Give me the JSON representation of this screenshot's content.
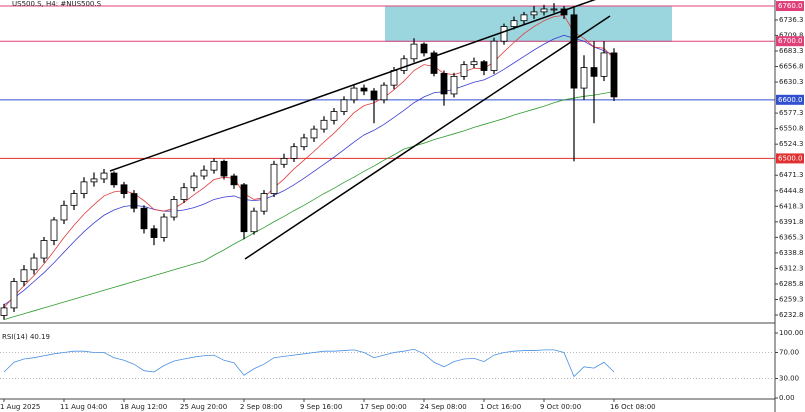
{
  "chart_data": [
    {
      "type": "candlestick",
      "title": "US500.S, H4:  #NUS500.S",
      "categories": [
        "1 Aug 2025",
        null,
        null,
        null,
        null,
        null,
        "11 Aug 04:00",
        null,
        null,
        null,
        null,
        null,
        "18 Aug 12:00",
        null,
        null,
        null,
        null,
        null,
        "25 Aug 20:00",
        null,
        null,
        null,
        null,
        null,
        "2 Sep 08:00",
        null,
        null,
        null,
        null,
        null,
        "9 Sep 16:00",
        null,
        null,
        null,
        null,
        null,
        "17 Sep 00:00",
        null,
        null,
        null,
        null,
        null,
        "24 Sep 08:00",
        null,
        null,
        null,
        null,
        null,
        "1 Oct 16:00",
        null,
        null,
        null,
        null,
        null,
        "9 Oct 00:00",
        null,
        null,
        null,
        null,
        null,
        null,
        "16 Oct 08:00"
      ],
      "open": [
        6232,
        6245,
        6290,
        6310,
        6330,
        6360,
        6395,
        6420,
        6440,
        6460,
        6465,
        6475,
        6455,
        6440,
        6415,
        6380,
        6365,
        6400,
        6430,
        6450,
        6470,
        6480,
        6495,
        6470,
        6455,
        6375,
        6410,
        6440,
        6490,
        6500,
        6520,
        6535,
        6550,
        6565,
        6580,
        6600,
        6620,
        6615,
        6600,
        6625,
        6650,
        6670,
        6695,
        6680,
        6645,
        6610,
        6640,
        6660,
        6665,
        6650,
        6700,
        6725,
        6735,
        6745,
        6750,
        6755,
        6755,
        6745,
        6620,
        6655,
        6640,
        6680
      ],
      "high": [
        6252,
        6296,
        6318,
        6338,
        6366,
        6400,
        6428,
        6446,
        6468,
        6476,
        6482,
        6478,
        6460,
        6446,
        6420,
        6386,
        6406,
        6436,
        6458,
        6476,
        6488,
        6500,
        6498,
        6474,
        6458,
        6416,
        6446,
        6496,
        6508,
        6526,
        6542,
        6556,
        6572,
        6586,
        6606,
        6626,
        6626,
        6620,
        6630,
        6656,
        6676,
        6705,
        6698,
        6684,
        6650,
        6646,
        6666,
        6672,
        6668,
        6706,
        6730,
        6742,
        6750,
        6760,
        6762,
        6765,
        6760,
        6760,
        6676,
        6700,
        6700,
        6688
      ],
      "low": [
        6225,
        6238,
        6282,
        6302,
        6322,
        6352,
        6388,
        6412,
        6432,
        6452,
        6458,
        6450,
        6432,
        6408,
        6372,
        6352,
        6358,
        6394,
        6424,
        6444,
        6464,
        6474,
        6464,
        6448,
        6362,
        6370,
        6404,
        6434,
        6484,
        6494,
        6514,
        6528,
        6544,
        6558,
        6574,
        6594,
        6608,
        6560,
        6594,
        6618,
        6644,
        6664,
        6674,
        6640,
        6590,
        6604,
        6634,
        6654,
        6642,
        6644,
        6694,
        6720,
        6728,
        6738,
        6744,
        6748,
        6738,
        6495,
        6600,
        6560,
        6632,
        6598
      ],
      "close": [
        6245,
        6290,
        6310,
        6330,
        6360,
        6395,
        6420,
        6440,
        6460,
        6465,
        6475,
        6455,
        6440,
        6415,
        6380,
        6365,
        6400,
        6430,
        6450,
        6470,
        6480,
        6495,
        6470,
        6455,
        6375,
        6410,
        6440,
        6490,
        6500,
        6520,
        6535,
        6550,
        6565,
        6580,
        6600,
        6620,
        6615,
        6600,
        6625,
        6650,
        6670,
        6695,
        6680,
        6645,
        6610,
        6640,
        6660,
        6665,
        6650,
        6700,
        6725,
        6735,
        6745,
        6750,
        6755,
        6755,
        6745,
        6620,
        6655,
        6640,
        6680,
        6605
      ],
      "up_color": "#ffffff",
      "down_color": "#000000",
      "moving_averages": [
        {
          "color": "#2e9a2e",
          "values": [
            6225,
            6230,
            6235,
            6240,
            6245,
            6250,
            6255,
            6260,
            6265,
            6270,
            6275,
            6280,
            6285,
            6290,
            6295,
            6300,
            6305,
            6310,
            6315,
            6320,
            6325,
            6335,
            6344,
            6354,
            6363,
            6373,
            6382,
            6392,
            6401,
            6411,
            6420,
            6430,
            6440,
            6449,
            6459,
            6468,
            6478,
            6487,
            6497,
            6506,
            6516,
            6521,
            6526,
            6532,
            6537,
            6542,
            6547,
            6553,
            6558,
            6563,
            6568,
            6574,
            6579,
            6584,
            6589,
            6595,
            6600,
            6603,
            6606,
            6608,
            6611,
            6614
          ]
        },
        {
          "color": "#3b3bd6",
          "values": [
            6250,
            6262,
            6275,
            6290,
            6305,
            6322,
            6340,
            6358,
            6375,
            6390,
            6403,
            6412,
            6418,
            6420,
            6418,
            6413,
            6410,
            6410,
            6412,
            6416,
            6422,
            6430,
            6434,
            6436,
            6430,
            6428,
            6430,
            6437,
            6445,
            6455,
            6466,
            6478,
            6490,
            6502,
            6515,
            6528,
            6540,
            6548,
            6558,
            6570,
            6582,
            6595,
            6605,
            6612,
            6614,
            6618,
            6624,
            6630,
            6634,
            6642,
            6652,
            6663,
            6674,
            6685,
            6695,
            6704,
            6710,
            6705,
            6700,
            6690,
            6684,
            6676
          ]
        },
        {
          "color": "#e03a3a",
          "values": [
            6245,
            6265,
            6283,
            6300,
            6320,
            6342,
            6365,
            6386,
            6405,
            6421,
            6436,
            6443,
            6445,
            6440,
            6428,
            6413,
            6410,
            6415,
            6425,
            6438,
            6450,
            6464,
            6468,
            6466,
            6440,
            6430,
            6433,
            6450,
            6465,
            6482,
            6497,
            6512,
            6528,
            6543,
            6560,
            6578,
            6590,
            6595,
            6604,
            6617,
            6632,
            6650,
            6660,
            6657,
            6645,
            6643,
            6648,
            6654,
            6653,
            6665,
            6682,
            6698,
            6713,
            6725,
            6735,
            6742,
            6744,
            6715,
            6705,
            6690,
            6688,
            6670
          ]
        }
      ],
      "ylim": [
        6219.2,
        6770.3
      ],
      "yticks": [
        6736.3,
        6709.8,
        6683.3,
        6656.8,
        6630.3,
        6577.3,
        6550.8,
        6524.3,
        6471.3,
        6444.8,
        6418.3,
        6391.8,
        6365.3,
        6338.8,
        6312.3,
        6285.8,
        6259.3,
        6232.8
      ],
      "levels": [
        {
          "value": 6760,
          "label": "6760.0",
          "color": "#e0407a"
        },
        {
          "value": 6700,
          "label": "6700.0",
          "color": "#e0407a"
        },
        {
          "value": 6600,
          "label": "6600.0",
          "color": "#3050d0"
        },
        {
          "value": 6500,
          "label": "6500.0",
          "color": "#e03030"
        }
      ]
    },
    {
      "type": "line",
      "title": "RSI(14) 40.19",
      "color": "#4a90e2",
      "values": [
        40,
        55,
        60,
        62,
        65,
        68,
        70,
        72,
        72,
        70,
        70,
        62,
        58,
        52,
        42,
        40,
        50,
        57,
        60,
        63,
        65,
        66,
        58,
        54,
        35,
        45,
        52,
        62,
        64,
        66,
        68,
        70,
        72,
        72,
        73,
        74,
        70,
        62,
        66,
        70,
        72,
        75,
        68,
        55,
        48,
        56,
        60,
        61,
        56,
        66,
        70,
        72,
        73,
        73,
        74,
        74,
        70,
        33,
        48,
        46,
        55,
        40
      ],
      "ylim": [
        0,
        100
      ],
      "yticks": [
        {
          "value": 100,
          "label": "100.00"
        },
        {
          "value": 70,
          "label": "70.00"
        },
        {
          "value": 30,
          "label": "30.00"
        },
        {
          "value": 0,
          "label": "0.00"
        }
      ]
    }
  ]
}
